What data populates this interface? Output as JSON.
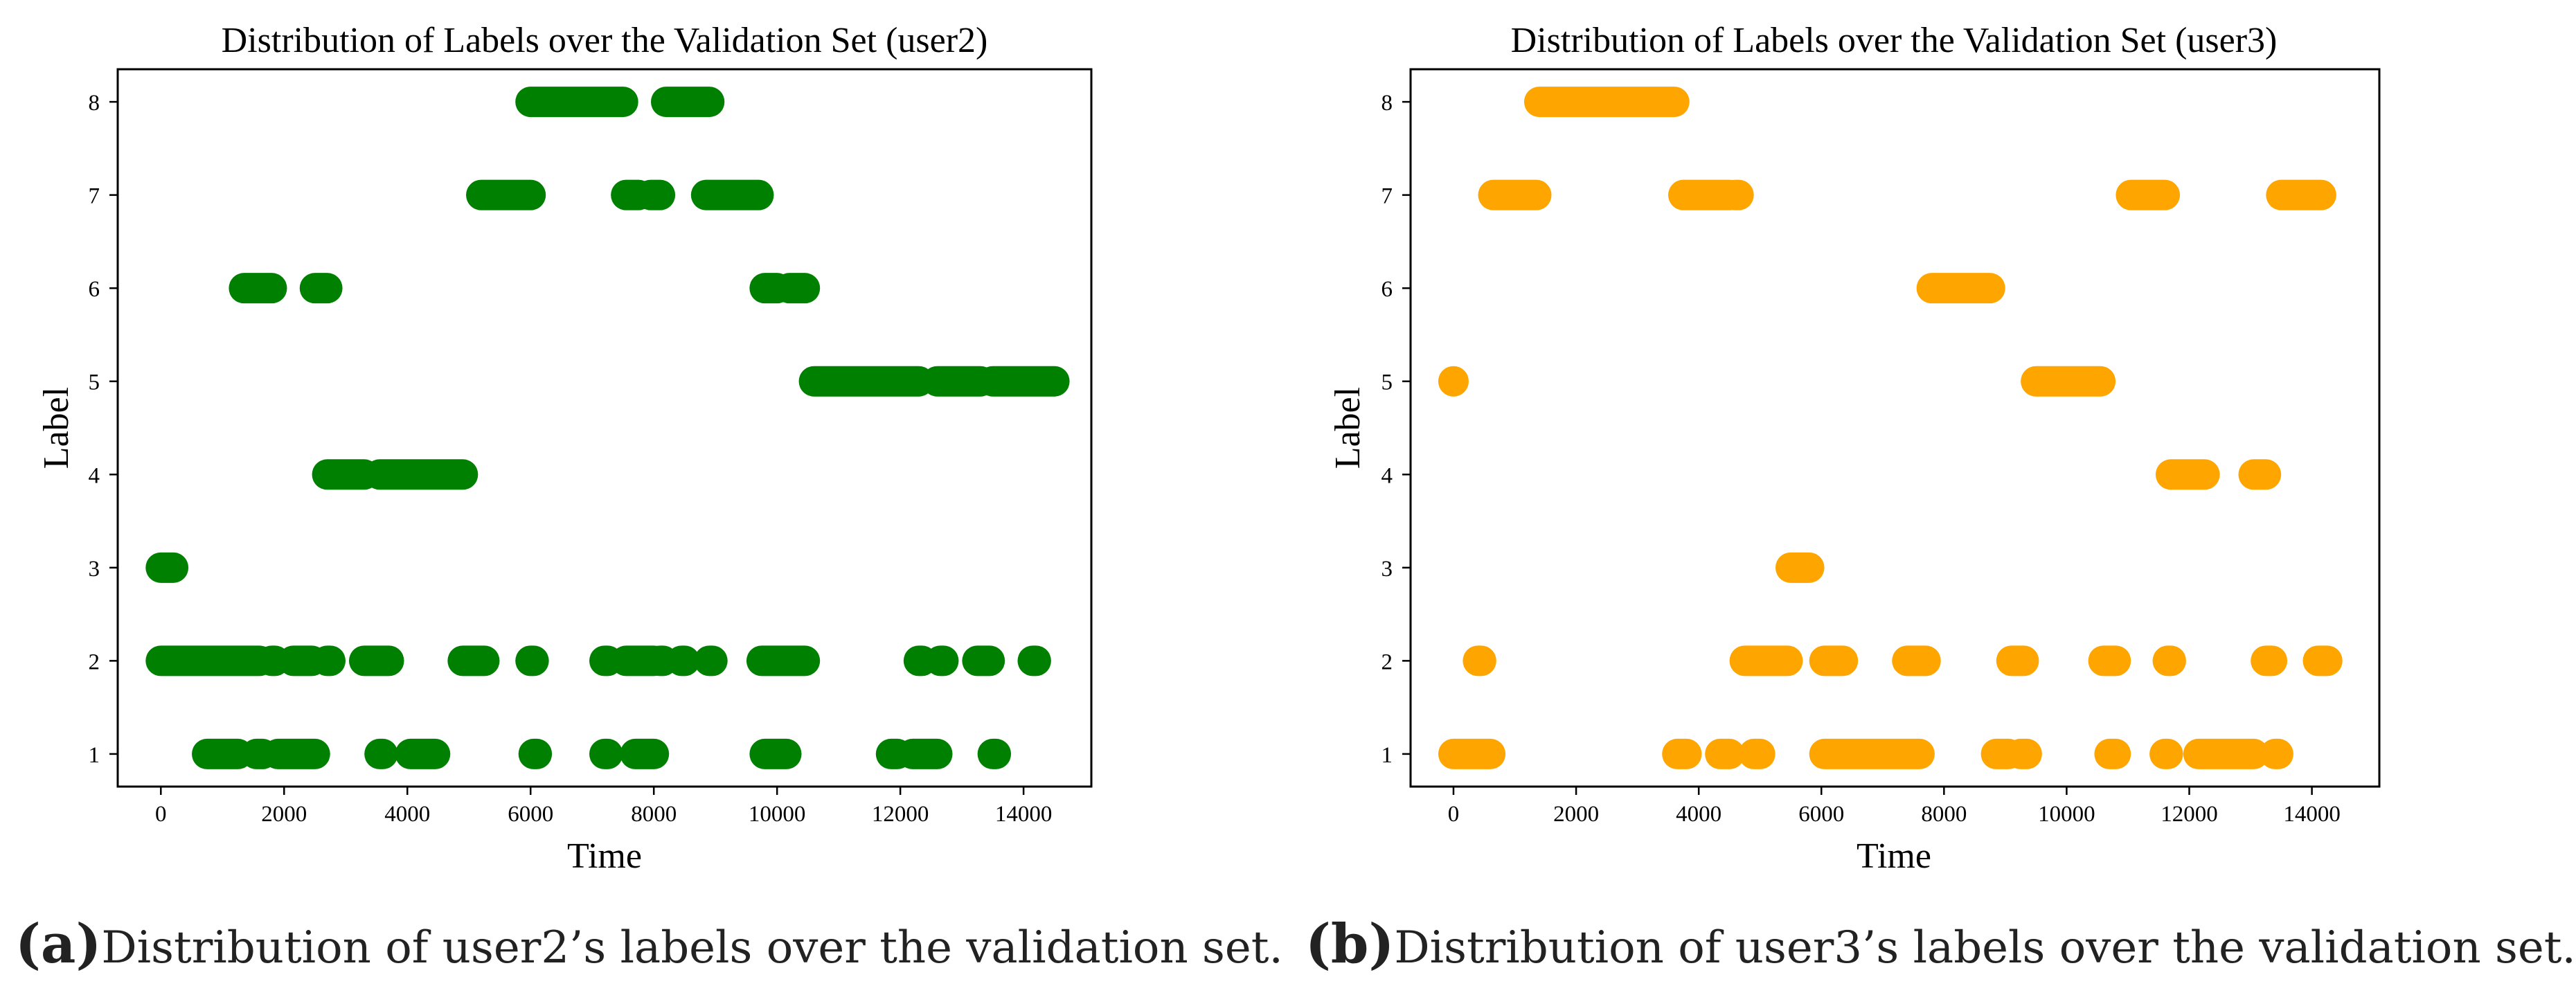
{
  "chart_data": [
    {
      "type": "scatter",
      "title": "Distribution of Labels over the Validation Set (user2)",
      "xlabel": "Time",
      "ylabel": "Label",
      "xlim": [
        -700,
        15100
      ],
      "ylim": [
        0.65,
        8.35
      ],
      "xticks": [
        0,
        2000,
        4000,
        6000,
        8000,
        10000,
        12000,
        14000
      ],
      "yticks": [
        1,
        2,
        3,
        4,
        5,
        6,
        7,
        8
      ],
      "color": "#008000",
      "caption_label": "(a)",
      "caption_text": "Distribution of user2’s labels over the validation set.",
      "segments": [
        {
          "label": 8,
          "x": [
            6000,
            7500
          ]
        },
        {
          "label": 8,
          "x": [
            8200,
            8900
          ]
        },
        {
          "label": 7,
          "x": [
            5200,
            6000
          ]
        },
        {
          "label": 7,
          "x": [
            7550,
            7750
          ]
        },
        {
          "label": 7,
          "x": [
            7950,
            8100
          ]
        },
        {
          "label": 7,
          "x": [
            8850,
            9700
          ]
        },
        {
          "label": 6,
          "x": [
            1350,
            1800
          ]
        },
        {
          "label": 6,
          "x": [
            2500,
            2700
          ]
        },
        {
          "label": 6,
          "x": [
            9800,
            10000
          ]
        },
        {
          "label": 6,
          "x": [
            10200,
            10450
          ]
        },
        {
          "label": 5,
          "x": [
            10600,
            12300
          ]
        },
        {
          "label": 5,
          "x": [
            12600,
            13300
          ]
        },
        {
          "label": 5,
          "x": [
            13500,
            14500
          ]
        },
        {
          "label": 4,
          "x": [
            2700,
            3300
          ]
        },
        {
          "label": 4,
          "x": [
            3550,
            4900
          ]
        },
        {
          "label": 3,
          "x": [
            0,
            200
          ]
        },
        {
          "label": 2,
          "x": [
            0,
            1600
          ]
        },
        {
          "label": 2,
          "x": [
            1800,
            1850
          ]
        },
        {
          "label": 2,
          "x": [
            2150,
            2450
          ]
        },
        {
          "label": 2,
          "x": [
            2700,
            2750
          ]
        },
        {
          "label": 2,
          "x": [
            3300,
            3700
          ]
        },
        {
          "label": 2,
          "x": [
            4900,
            5250
          ]
        },
        {
          "label": 2,
          "x": [
            6000,
            6050
          ]
        },
        {
          "label": 2,
          "x": [
            7200,
            7250
          ]
        },
        {
          "label": 2,
          "x": [
            7550,
            8000
          ]
        },
        {
          "label": 2,
          "x": [
            8100,
            8150
          ]
        },
        {
          "label": 2,
          "x": [
            8450,
            8500
          ]
        },
        {
          "label": 2,
          "x": [
            8900,
            8950
          ]
        },
        {
          "label": 2,
          "x": [
            9750,
            10450
          ]
        },
        {
          "label": 2,
          "x": [
            12300,
            12350
          ]
        },
        {
          "label": 2,
          "x": [
            12650,
            12700
          ]
        },
        {
          "label": 2,
          "x": [
            13250,
            13450
          ]
        },
        {
          "label": 2,
          "x": [
            14150,
            14200
          ]
        },
        {
          "label": 1,
          "x": [
            750,
            1250
          ]
        },
        {
          "label": 1,
          "x": [
            1550,
            1650
          ]
        },
        {
          "label": 1,
          "x": [
            1900,
            2500
          ]
        },
        {
          "label": 1,
          "x": [
            3550,
            3600
          ]
        },
        {
          "label": 1,
          "x": [
            4050,
            4450
          ]
        },
        {
          "label": 1,
          "x": [
            6050,
            6100
          ]
        },
        {
          "label": 1,
          "x": [
            7200,
            7250
          ]
        },
        {
          "label": 1,
          "x": [
            7700,
            8000
          ]
        },
        {
          "label": 1,
          "x": [
            9800,
            10150
          ]
        },
        {
          "label": 1,
          "x": [
            11850,
            11950
          ]
        },
        {
          "label": 1,
          "x": [
            12200,
            12600
          ]
        },
        {
          "label": 1,
          "x": [
            13500,
            13550
          ]
        }
      ]
    },
    {
      "type": "scatter",
      "title": "Distribution of Labels over the Validation Set (user3)",
      "xlabel": "Time",
      "ylabel": "Label",
      "xlim": [
        -700,
        15100
      ],
      "ylim": [
        0.65,
        8.35
      ],
      "xticks": [
        0,
        2000,
        4000,
        6000,
        8000,
        10000,
        12000,
        14000
      ],
      "yticks": [
        1,
        2,
        3,
        4,
        5,
        6,
        7,
        8
      ],
      "color": "#FFA500",
      "caption_label": "(b)",
      "caption_text": "Distribution of user3’s labels over the validation set.",
      "segments": [
        {
          "label": 8,
          "x": [
            1400,
            3600
          ]
        },
        {
          "label": 7,
          "x": [
            650,
            1350
          ]
        },
        {
          "label": 7,
          "x": [
            3750,
            4500
          ]
        },
        {
          "label": 7,
          "x": [
            4600,
            4650
          ]
        },
        {
          "label": 7,
          "x": [
            11050,
            11600
          ]
        },
        {
          "label": 7,
          "x": [
            13500,
            14150
          ]
        },
        {
          "label": 6,
          "x": [
            7800,
            8750
          ]
        },
        {
          "label": 5,
          "x": [
            0,
            0
          ]
        },
        {
          "label": 5,
          "x": [
            9500,
            10550
          ]
        },
        {
          "label": 4,
          "x": [
            11700,
            12250
          ]
        },
        {
          "label": 4,
          "x": [
            13050,
            13250
          ]
        },
        {
          "label": 3,
          "x": [
            5500,
            5800
          ]
        },
        {
          "label": 2,
          "x": [
            400,
            450
          ]
        },
        {
          "label": 2,
          "x": [
            4750,
            5450
          ]
        },
        {
          "label": 2,
          "x": [
            6050,
            6350
          ]
        },
        {
          "label": 2,
          "x": [
            7400,
            7700
          ]
        },
        {
          "label": 2,
          "x": [
            9100,
            9300
          ]
        },
        {
          "label": 2,
          "x": [
            10600,
            10800
          ]
        },
        {
          "label": 2,
          "x": [
            11650,
            11700
          ]
        },
        {
          "label": 2,
          "x": [
            13250,
            13350
          ]
        },
        {
          "label": 2,
          "x": [
            14100,
            14250
          ]
        },
        {
          "label": 1,
          "x": [
            0,
            600
          ]
        },
        {
          "label": 1,
          "x": [
            3650,
            3800
          ]
        },
        {
          "label": 1,
          "x": [
            4350,
            4500
          ]
        },
        {
          "label": 1,
          "x": [
            4900,
            5000
          ]
        },
        {
          "label": 1,
          "x": [
            6050,
            7600
          ]
        },
        {
          "label": 1,
          "x": [
            8850,
            9050
          ]
        },
        {
          "label": 1,
          "x": [
            9250,
            9350
          ]
        },
        {
          "label": 1,
          "x": [
            10700,
            10800
          ]
        },
        {
          "label": 1,
          "x": [
            11600,
            11650
          ]
        },
        {
          "label": 1,
          "x": [
            12150,
            13050
          ]
        },
        {
          "label": 1,
          "x": [
            13400,
            13450
          ]
        }
      ]
    }
  ]
}
